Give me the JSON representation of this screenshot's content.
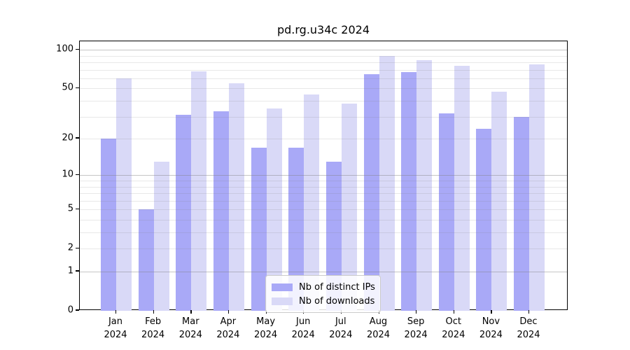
{
  "chart_data": {
    "type": "bar",
    "title": "pd.rg.u34c 2024",
    "categories": [
      "Jan",
      "Feb",
      "Mar",
      "Apr",
      "May",
      "Jun",
      "Jul",
      "Aug",
      "Sep",
      "Oct",
      "Nov",
      "Dec"
    ],
    "x_tick_second_line": "2024",
    "series": [
      {
        "name": "Nb of distinct IPs",
        "color": "#a9a9f7",
        "values": [
          20,
          5,
          31,
          33,
          17,
          17,
          13,
          65,
          67,
          32,
          24,
          30
        ]
      },
      {
        "name": "Nb of downloads",
        "color": "#d9d9f7",
        "values": [
          60,
          13,
          68,
          55,
          35,
          45,
          38,
          90,
          83,
          75,
          47,
          77
        ]
      }
    ],
    "xlabel": "",
    "ylabel": "",
    "yscale": "log1p",
    "ylim": [
      0,
      117
    ],
    "y_tick_values": [
      100,
      50,
      20,
      10,
      5,
      2,
      1,
      0
    ],
    "y_tick_labels": [
      "100",
      "50",
      "20",
      "10",
      "5",
      "2",
      "1",
      "0"
    ],
    "y_major_gridlines": [
      1,
      10,
      100
    ],
    "y_minor_gridlines": [
      2,
      3,
      4,
      5,
      6,
      7,
      8,
      9,
      20,
      30,
      40,
      50,
      60,
      70,
      80,
      90
    ],
    "grid": true,
    "legend_position": "lower center"
  }
}
